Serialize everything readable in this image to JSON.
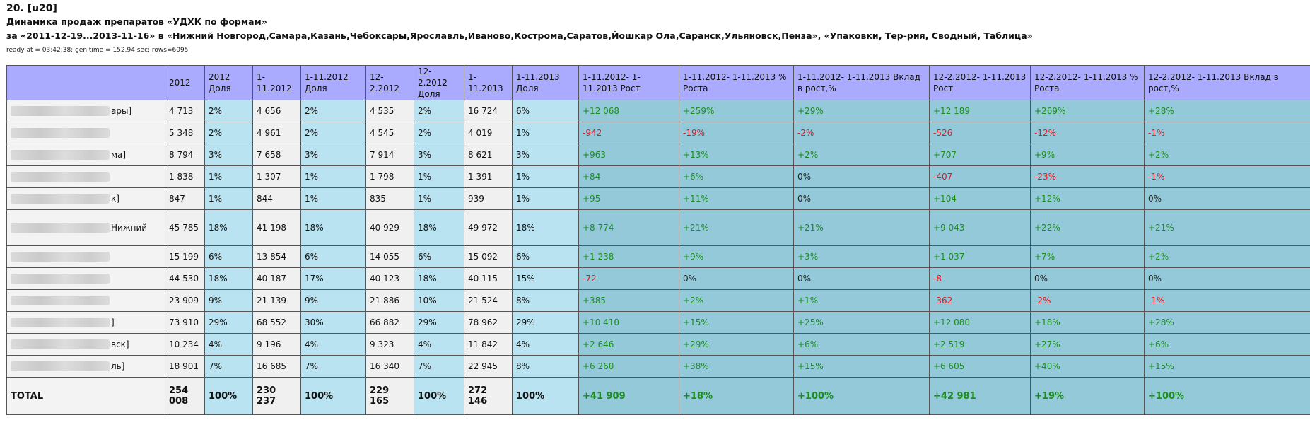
{
  "header": {
    "num": "20. [u20]",
    "title": "Динамика продаж препаратов «УДХК по формам»",
    "subtitle": "за «2011-12-19...2013-11-16» в «Нижний Новгород,Самара,Казань,Чебоксары,Ярославль,Иваново,Кострома,Саратов,Йошкар Ола,Саранск,Ульяновск,Пенза», «Упаковки, Тер-рия, Сводный, Таблица»",
    "meta": "ready at = 03:42:38; gen time = 152.94 sec; rows=6095"
  },
  "columns": [
    "",
    "2012",
    "2012 Доля",
    "1-11.2012",
    "1-11.2012 Доля",
    "12-2.2012",
    "12-2.2012 Доля",
    "1-11.2013",
    "1-11.2013 Доля",
    "1-11.2012- 1-11.2013 Рост",
    "1-11.2012- 1-11.2013 % Роста",
    "1-11.2012- 1-11.2013 Вклад в рост,%",
    "12-2.2012- 1-11.2013 Рост",
    "12-2.2012- 1-11.2013 % Роста",
    "12-2.2012- 1-11.2013 Вклад в рост,%"
  ],
  "rows": [
    {
      "name_tail": "ары]",
      "v2012": "4 713",
      "s2012": "2%",
      "v111_12": "4 656",
      "s111_12": "2%",
      "v122_12": "4 535",
      "s122_12": "2%",
      "v111_13": "16 724",
      "s111_13": "6%",
      "g1": "+12 068",
      "p1": "+259%",
      "c1": "+29%",
      "g2": "+12 189",
      "p2": "+269%",
      "c2": "+28%"
    },
    {
      "name_tail": "",
      "v2012": "5 348",
      "s2012": "2%",
      "v111_12": "4 961",
      "s111_12": "2%",
      "v122_12": "4 545",
      "s122_12": "2%",
      "v111_13": "4 019",
      "s111_13": "1%",
      "g1": "-942",
      "p1": "-19%",
      "c1": "-2%",
      "g2": "-526",
      "p2": "-12%",
      "c2": "-1%"
    },
    {
      "name_tail": "ма]",
      "v2012": "8 794",
      "s2012": "3%",
      "v111_12": "7 658",
      "s111_12": "3%",
      "v122_12": "7 914",
      "s122_12": "3%",
      "v111_13": "8 621",
      "s111_13": "3%",
      "g1": "+963",
      "p1": "+13%",
      "c1": "+2%",
      "g2": "+707",
      "p2": "+9%",
      "c2": "+2%"
    },
    {
      "name_tail": "",
      "v2012": "1 838",
      "s2012": "1%",
      "v111_12": "1 307",
      "s111_12": "1%",
      "v122_12": "1 798",
      "s122_12": "1%",
      "v111_13": "1 391",
      "s111_13": "1%",
      "g1": "+84",
      "p1": "+6%",
      "c1": "0%",
      "g2": "-407",
      "p2": "-23%",
      "c2": "-1%"
    },
    {
      "name_tail": "к]",
      "v2012": "847",
      "s2012": "1%",
      "v111_12": "844",
      "s111_12": "1%",
      "v122_12": "835",
      "s122_12": "1%",
      "v111_13": "939",
      "s111_13": "1%",
      "g1": "+95",
      "p1": "+11%",
      "c1": "0%",
      "g2": "+104",
      "p2": "+12%",
      "c2": "0%"
    },
    {
      "name_tail": "Нижний",
      "v2012": "45 785",
      "s2012": "18%",
      "v111_12": "41 198",
      "s111_12": "18%",
      "v122_12": "40 929",
      "s122_12": "18%",
      "v111_13": "49 972",
      "s111_13": "18%",
      "g1": "+8 774",
      "p1": "+21%",
      "c1": "+21%",
      "g2": "+9 043",
      "p2": "+22%",
      "c2": "+21%"
    },
    {
      "name_tail": "",
      "v2012": "15 199",
      "s2012": "6%",
      "v111_12": "13 854",
      "s111_12": "6%",
      "v122_12": "14 055",
      "s122_12": "6%",
      "v111_13": "15 092",
      "s111_13": "6%",
      "g1": "+1 238",
      "p1": "+9%",
      "c1": "+3%",
      "g2": "+1 037",
      "p2": "+7%",
      "c2": "+2%"
    },
    {
      "name_tail": "",
      "v2012": "44 530",
      "s2012": "18%",
      "v111_12": "40 187",
      "s111_12": "17%",
      "v122_12": "40 123",
      "s122_12": "18%",
      "v111_13": "40 115",
      "s111_13": "15%",
      "g1": "-72",
      "p1": "0%",
      "c1": "0%",
      "g2": "-8",
      "p2": "0%",
      "c2": "0%"
    },
    {
      "name_tail": "",
      "v2012": "23 909",
      "s2012": "9%",
      "v111_12": "21 139",
      "s111_12": "9%",
      "v122_12": "21 886",
      "s122_12": "10%",
      "v111_13": "21 524",
      "s111_13": "8%",
      "g1": "+385",
      "p1": "+2%",
      "c1": "+1%",
      "g2": "-362",
      "p2": "-2%",
      "c2": "-1%"
    },
    {
      "name_tail": "]",
      "v2012": "73 910",
      "s2012": "29%",
      "v111_12": "68 552",
      "s111_12": "30%",
      "v122_12": "66 882",
      "s122_12": "29%",
      "v111_13": "78 962",
      "s111_13": "29%",
      "g1": "+10 410",
      "p1": "+15%",
      "c1": "+25%",
      "g2": "+12 080",
      "p2": "+18%",
      "c2": "+28%"
    },
    {
      "name_tail": "вск]",
      "v2012": "10 234",
      "s2012": "4%",
      "v111_12": "9 196",
      "s111_12": "4%",
      "v122_12": "9 323",
      "s122_12": "4%",
      "v111_13": "11 842",
      "s111_13": "4%",
      "g1": "+2 646",
      "p1": "+29%",
      "c1": "+6%",
      "g2": "+2 519",
      "p2": "+27%",
      "c2": "+6%"
    },
    {
      "name_tail": "ль]",
      "v2012": "18 901",
      "s2012": "7%",
      "v111_12": "16 685",
      "s111_12": "7%",
      "v122_12": "16 340",
      "s122_12": "7%",
      "v111_13": "22 945",
      "s111_13": "8%",
      "g1": "+6 260",
      "p1": "+38%",
      "c1": "+15%",
      "g2": "+6 605",
      "p2": "+40%",
      "c2": "+15%"
    }
  ],
  "total": {
    "name": "TOTAL",
    "v2012": "254 008",
    "s2012": "100%",
    "v111_12": "230 237",
    "s111_12": "100%",
    "v122_12": "229 165",
    "s122_12": "100%",
    "v111_13": "272 146",
    "s111_13": "100%",
    "g1": "+41 909",
    "p1": "+18%",
    "c1": "+100%",
    "g2": "+42 981",
    "p2": "+19%",
    "c2": "+100%"
  }
}
